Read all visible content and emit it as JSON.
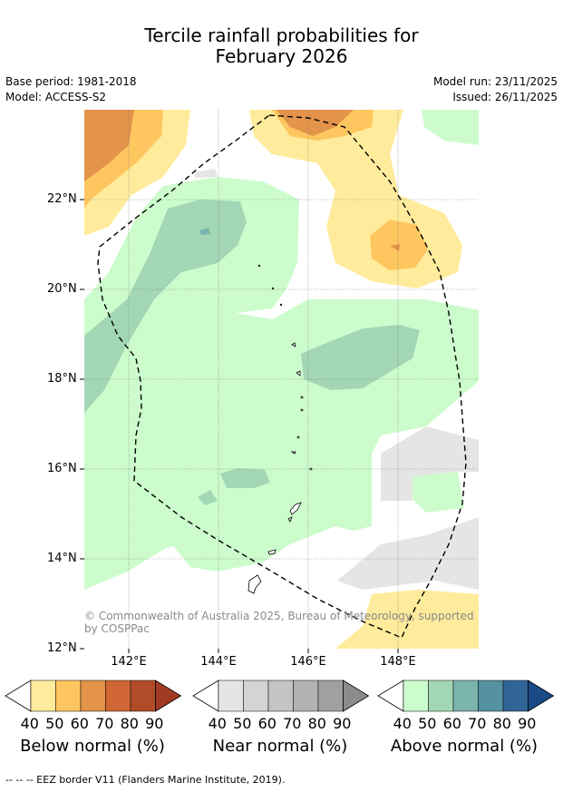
{
  "title_line1": "Tercile rainfall probabilities for",
  "title_line2": "February 2026",
  "base_period": "Base period: 1981-2018",
  "model": "Model: ACCESS-S2",
  "model_run": "Model run: 23/11/2025",
  "issued": "Issued: 26/11/2025",
  "lat_labels": [
    "22°N",
    "20°N",
    "18°N",
    "16°N",
    "14°N",
    "12°N"
  ],
  "lon_labels": [
    "142°E",
    "144°E",
    "146°E",
    "148°E"
  ],
  "copyright": "© Commonwealth of Australia 2025, Bureau of Meteorology, supported by COSPPac",
  "colorbars": [
    {
      "label": "Below normal (%)",
      "ticks": [
        "40",
        "50",
        "60",
        "70",
        "80",
        "90"
      ],
      "colors": [
        "#ffffff",
        "#ffeb9c",
        "#fec65f",
        "#e3934a",
        "#d06633",
        "#b04c28",
        "#a13a23"
      ]
    },
    {
      "label": "Near normal (%)",
      "ticks": [
        "40",
        "50",
        "60",
        "70",
        "80",
        "90"
      ],
      "colors": [
        "#ffffff",
        "#e5e5e5",
        "#d4d4d4",
        "#c4c4c4",
        "#b2b2b2",
        "#a0a0a0",
        "#8c8c8c"
      ]
    },
    {
      "label": "Above normal (%)",
      "ticks": [
        "40",
        "50",
        "60",
        "70",
        "80",
        "90"
      ],
      "colors": [
        "#ffffff",
        "#ccfccc",
        "#a3d6b4",
        "#7ab4ad",
        "#5592a1",
        "#316497",
        "#1a4a85"
      ]
    }
  ],
  "footnote": "--  --  -- EEZ border V11 (Flanders Marine Institute, 2019)."
}
